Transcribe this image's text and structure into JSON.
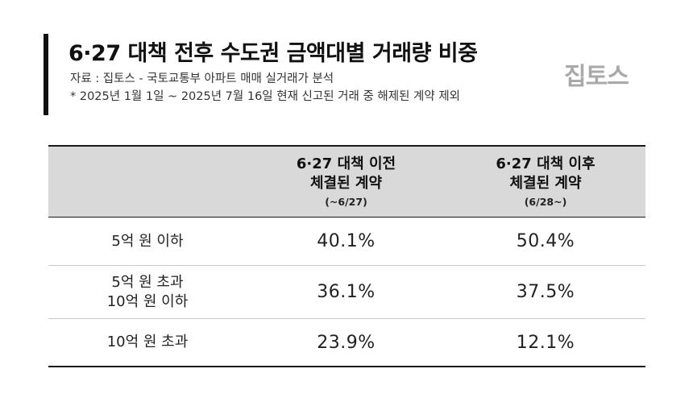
{
  "title": "6·27 대책 전후 수도권 금액대별 거래량 비중",
  "source": "자료 : 집토스 - 국토교통부 아파트 매매 실거래가 분석",
  "note": "* 2025년 1월 1일 ~ 2025년 7월 16일 현재 신고된 거래 중 해제된 계약 제외",
  "logo": "집토스",
  "table": {
    "headers": [
      {
        "line1": "6·27 대책 이전",
        "line2": "체결된 계약",
        "line3": "(~6/27)"
      },
      {
        "line1": "6·27 대책 이후",
        "line2": "체결된 계약",
        "line3": "(6/28~)"
      }
    ],
    "rows": [
      {
        "label_lines": [
          "5억 원 이하"
        ],
        "before": "40.1%",
        "after": "50.4%"
      },
      {
        "label_lines": [
          "5억 원 초과",
          "10억 원 이하"
        ],
        "before": "36.1%",
        "after": "37.5%"
      },
      {
        "label_lines": [
          "10억 원 초과"
        ],
        "before": "23.9%",
        "after": "12.1%"
      }
    ]
  },
  "colors": {
    "header_bg": "#d9d9d9",
    "logo": "#a9a9a9",
    "accent_bar": "#111111"
  }
}
